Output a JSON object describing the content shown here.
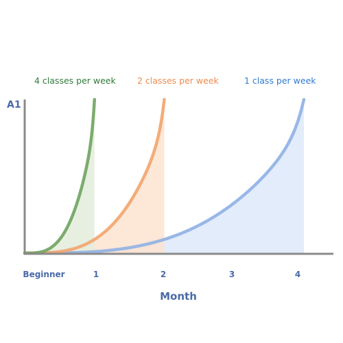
{
  "chart_data": {
    "type": "area",
    "xlabel": "Month",
    "ylabel": "A1",
    "categories": [
      "Beginner",
      "1",
      "2",
      "3",
      "4"
    ],
    "x_range": [
      0,
      4
    ],
    "y_range": [
      0,
      1
    ],
    "grid": false,
    "legend_position": "top",
    "series": [
      {
        "name": "4 classes per week",
        "end_month": 1,
        "color": "#6fa35f",
        "fill": "#e3ecdc",
        "x": [
          0,
          0.25,
          0.5,
          0.75,
          1
        ],
        "y": [
          0,
          0.02,
          0.1,
          0.3,
          1
        ]
      },
      {
        "name": "2 classes per week",
        "end_month": 2,
        "color": "#f2a46d",
        "fill": "#fde3d0",
        "x": [
          0,
          0.5,
          1,
          1.5,
          2
        ],
        "y": [
          0,
          0.02,
          0.1,
          0.3,
          1
        ]
      },
      {
        "name": "1 class per week",
        "end_month": 4,
        "color": "#8fb0e4",
        "fill": "#dde9fa",
        "x": [
          0,
          1,
          2,
          3,
          4
        ],
        "y": [
          0,
          0.02,
          0.1,
          0.3,
          1
        ]
      }
    ]
  }
}
